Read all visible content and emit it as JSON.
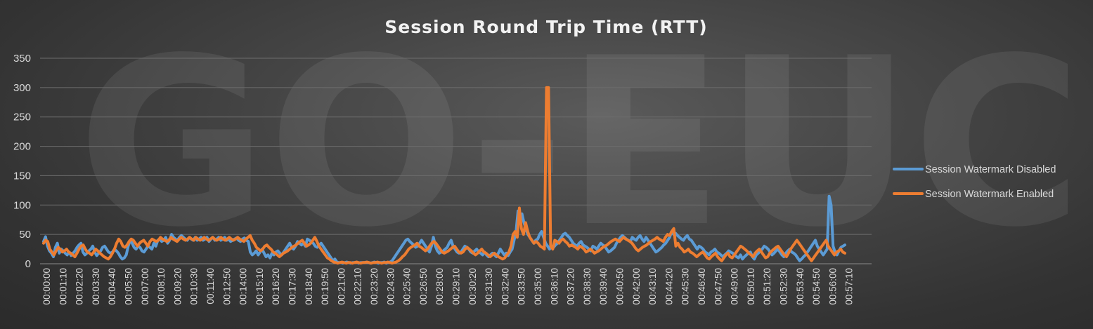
{
  "chart_data": {
    "type": "line",
    "title": "Session Round Trip Time (RTT)",
    "watermark": "GO-EUC",
    "ylim": [
      0,
      350
    ],
    "yticks": [
      0,
      50,
      100,
      150,
      200,
      250,
      300,
      350
    ],
    "grid": true,
    "legend_position": "right",
    "xtick_labels": [
      "00:00:00",
      "00:01:10",
      "00:02:20",
      "00:03:30",
      "00:04:40",
      "00:05:50",
      "00:07:00",
      "00:08:10",
      "00:09:20",
      "00:10:30",
      "00:11:40",
      "00:12:50",
      "00:14:00",
      "00:15:10",
      "00:16:20",
      "00:17:30",
      "00:18:40",
      "00:19:50",
      "00:21:00",
      "00:22:10",
      "00:23:20",
      "00:24:30",
      "00:25:40",
      "00:26:50",
      "00:28:00",
      "00:29:10",
      "00:30:20",
      "00:31:30",
      "00:32:40",
      "00:33:50",
      "00:35:00",
      "00:36:10",
      "00:37:20",
      "00:38:30",
      "00:39:40",
      "00:40:50",
      "00:42:00",
      "00:43:10",
      "00:44:20",
      "00:45:30",
      "00:46:40",
      "00:47:50",
      "00:49:00",
      "00:50:10",
      "00:51:20",
      "00:52:30",
      "00:53:40",
      "00:54:50",
      "00:56:00",
      "00:57:10"
    ],
    "sample_interval_seconds": 10,
    "series": [
      {
        "name": "Session Watermark Disabled",
        "color": "#5b9bd5",
        "values": [
          38,
          46,
          30,
          22,
          18,
          12,
          28,
          35,
          18,
          25,
          22,
          18,
          15,
          20,
          14,
          18,
          22,
          28,
          32,
          35,
          20,
          15,
          18,
          22,
          25,
          30,
          20,
          14,
          18,
          22,
          28,
          30,
          25,
          20,
          18,
          20,
          25,
          22,
          18,
          12,
          8,
          10,
          15,
          30,
          40,
          35,
          28,
          25,
          30,
          28,
          22,
          20,
          25,
          30,
          28,
          25,
          35,
          30,
          40,
          42,
          38,
          40,
          45,
          35,
          40,
          50,
          45,
          42,
          40,
          45,
          48,
          45,
          42,
          40,
          45,
          42,
          40,
          45,
          40,
          42,
          45,
          40,
          42,
          45,
          38,
          42,
          45,
          40,
          42,
          45,
          40,
          42,
          45,
          40,
          42,
          38,
          40,
          42,
          44,
          40,
          38,
          42,
          44,
          40,
          38,
          20,
          15,
          18,
          22,
          15,
          20,
          25,
          18,
          12,
          15,
          10,
          18,
          15,
          20,
          22,
          18,
          15,
          20,
          25,
          30,
          35,
          28,
          25,
          30,
          38,
          35,
          32,
          35,
          30,
          42,
          40,
          38,
          35,
          30,
          28,
          32,
          35,
          30,
          25,
          20,
          15,
          10,
          5,
          8,
          3,
          2,
          2,
          1,
          2,
          3,
          2,
          1,
          2,
          2,
          3,
          1,
          2,
          2,
          2,
          3,
          2,
          1,
          2,
          3,
          2,
          1,
          2,
          2,
          3,
          1,
          2,
          3,
          5,
          10,
          15,
          20,
          25,
          30,
          35,
          40,
          42,
          38,
          35,
          32,
          28,
          30,
          35,
          40,
          35,
          30,
          25,
          20,
          30,
          45,
          30,
          22,
          18,
          20,
          22,
          25,
          28,
          35,
          40,
          30,
          25,
          20,
          18,
          20,
          25,
          30,
          28,
          25,
          20,
          18,
          22,
          25,
          20,
          18,
          15,
          20,
          15,
          12,
          15,
          18,
          15,
          12,
          18,
          25,
          20,
          15,
          18,
          14,
          20,
          25,
          40,
          55,
          90,
          80,
          85,
          70,
          60,
          50,
          45,
          40,
          35,
          40,
          42,
          50,
          55,
          45,
          35,
          30,
          25,
          30,
          28,
          32,
          35,
          40,
          45,
          50,
          52,
          48,
          45,
          40,
          35,
          32,
          30,
          35,
          38,
          32,
          30,
          28,
          25,
          22,
          30,
          28,
          25,
          30,
          35,
          32,
          30,
          25,
          20,
          22,
          25,
          28,
          35,
          40,
          45,
          48,
          45,
          42,
          40,
          38,
          45,
          42,
          40,
          45,
          48,
          42,
          38,
          45,
          40,
          35,
          30,
          25,
          20,
          22,
          25,
          28,
          32,
          35,
          40,
          45,
          55,
          50,
          52,
          48,
          45,
          42,
          40,
          45,
          48,
          42,
          40,
          35,
          30,
          25,
          30,
          28,
          25,
          20,
          18,
          15,
          20,
          22,
          25,
          20,
          18,
          15,
          12,
          15,
          18,
          22,
          20,
          18,
          15,
          12,
          10,
          15,
          8,
          12,
          15,
          18,
          20,
          12,
          8,
          15,
          18,
          22,
          25,
          30,
          28,
          25,
          20,
          15,
          18,
          22,
          25,
          20,
          15,
          12,
          18,
          22,
          25,
          20,
          18,
          15,
          10,
          5,
          8,
          12,
          15,
          20,
          25,
          30,
          35,
          40,
          30,
          25,
          20,
          15,
          20,
          25,
          115,
          100,
          30,
          20,
          15,
          22,
          28,
          30,
          32
        ]
      },
      {
        "name": "Session Watermark Enabled",
        "color": "#ed7d31",
        "values": [
          35,
          40,
          38,
          25,
          20,
          15,
          22,
          28,
          25,
          20,
          22,
          25,
          20,
          18,
          15,
          12,
          18,
          25,
          30,
          32,
          25,
          20,
          18,
          15,
          20,
          25,
          22,
          18,
          15,
          12,
          10,
          8,
          12,
          18,
          25,
          35,
          42,
          38,
          30,
          28,
          32,
          38,
          42,
          40,
          35,
          30,
          35,
          38,
          40,
          35,
          30,
          38,
          42,
          40,
          38,
          40,
          45,
          42,
          40,
          38,
          40,
          45,
          42,
          40,
          38,
          42,
          45,
          42,
          40,
          42,
          45,
          42,
          40,
          45,
          42,
          40,
          42,
          45,
          42,
          40,
          42,
          45,
          42,
          40,
          42,
          45,
          42,
          40,
          42,
          45,
          42,
          40,
          42,
          45,
          42,
          40,
          38,
          42,
          45,
          48,
          40,
          35,
          28,
          25,
          22,
          25,
          30,
          32,
          28,
          25,
          20,
          18,
          15,
          12,
          15,
          18,
          20,
          22,
          25,
          28,
          30,
          32,
          35,
          38,
          40,
          35,
          30,
          32,
          35,
          40,
          45,
          38,
          30,
          25,
          20,
          15,
          10,
          8,
          5,
          3,
          2,
          1,
          2,
          3,
          2,
          1,
          2,
          2,
          1,
          2,
          3,
          2,
          1,
          2,
          2,
          3,
          2,
          1,
          2,
          2,
          3,
          2,
          1,
          2,
          2,
          3,
          2,
          1,
          2,
          3,
          5,
          8,
          12,
          15,
          20,
          25,
          28,
          30,
          32,
          35,
          30,
          28,
          25,
          22,
          25,
          30,
          35,
          38,
          35,
          30,
          25,
          20,
          18,
          20,
          22,
          25,
          28,
          30,
          25,
          20,
          18,
          20,
          25,
          28,
          25,
          22,
          18,
          15,
          18,
          22,
          25,
          20,
          18,
          15,
          12,
          15,
          18,
          15,
          12,
          10,
          8,
          10,
          15,
          20,
          30,
          50,
          55,
          45,
          95,
          60,
          50,
          70,
          55,
          45,
          40,
          35,
          38,
          35,
          30,
          28,
          25,
          300,
          300,
          30,
          25,
          40,
          38,
          35,
          40,
          42,
          38,
          35,
          30,
          32,
          30,
          28,
          25,
          30,
          28,
          25,
          20,
          22,
          25,
          22,
          18,
          20,
          22,
          25,
          28,
          30,
          32,
          35,
          38,
          40,
          42,
          40,
          38,
          42,
          45,
          42,
          40,
          38,
          35,
          30,
          25,
          22,
          25,
          28,
          30,
          32,
          35,
          38,
          40,
          42,
          45,
          42,
          40,
          38,
          45,
          50,
          48,
          55,
          60,
          30,
          35,
          28,
          25,
          20,
          22,
          25,
          20,
          18,
          15,
          12,
          15,
          18,
          20,
          15,
          10,
          8,
          12,
          15,
          18,
          12,
          8,
          5,
          10,
          15,
          18,
          12,
          10,
          15,
          20,
          25,
          30,
          28,
          25,
          22,
          18,
          15,
          12,
          18,
          22,
          25,
          20,
          15,
          10,
          12,
          18,
          22,
          25,
          28,
          30,
          25,
          20,
          15,
          12,
          18,
          25,
          30,
          35,
          40,
          35,
          30,
          25,
          20,
          15,
          10,
          5,
          10,
          15,
          20,
          25,
          30,
          35,
          40,
          30,
          25,
          20,
          15,
          20,
          22,
          25,
          20,
          18
        ]
      }
    ]
  }
}
